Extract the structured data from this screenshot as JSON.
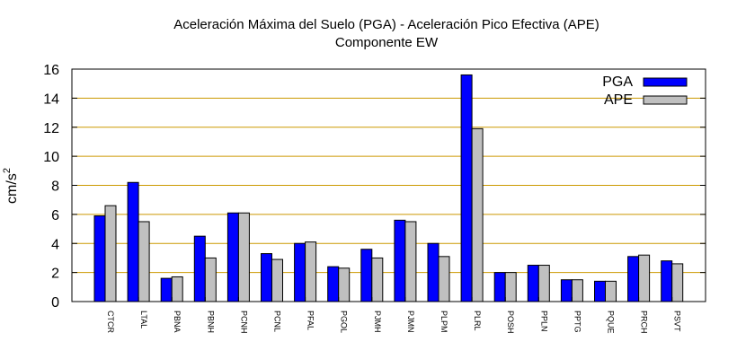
{
  "chart_data": {
    "type": "bar",
    "title": "Aceleración Máxima del Suelo (PGA) -  Aceleración Pico Efectiva (APE)",
    "subtitle": "Componente EW",
    "xlabel": "",
    "ylabel": "cm/s",
    "ylabel_superscript": "2",
    "ylim": [
      0,
      16
    ],
    "yticks": [
      0,
      2,
      4,
      6,
      8,
      10,
      12,
      14,
      16
    ],
    "grid": "horizontal",
    "legend_position": "top-right",
    "categories": [
      "CTCR",
      "LTAL",
      "PBNA",
      "PBNH",
      "PCNH",
      "PCNL",
      "PFAL",
      "PGOL",
      "PJMH",
      "PJMN",
      "PLPM",
      "PLRL",
      "POSH",
      "PPLN",
      "PPTG",
      "PQUE",
      "PRCH",
      "PSVT"
    ],
    "series": [
      {
        "name": "PGA",
        "color": "#0000ff",
        "values": [
          5.9,
          8.2,
          1.6,
          4.5,
          6.1,
          3.3,
          4.0,
          2.4,
          3.6,
          5.6,
          4.0,
          15.6,
          2.0,
          2.5,
          1.5,
          1.4,
          3.1,
          2.8
        ]
      },
      {
        "name": "APE",
        "color": "#c0c0c0",
        "values": [
          6.6,
          5.5,
          1.7,
          3.0,
          6.1,
          2.9,
          4.1,
          2.3,
          3.0,
          5.5,
          3.1,
          11.9,
          2.0,
          2.5,
          1.5,
          1.4,
          3.2,
          2.6
        ]
      }
    ]
  },
  "colors": {
    "grid": "#cc9900",
    "bar_border": "#000000"
  }
}
